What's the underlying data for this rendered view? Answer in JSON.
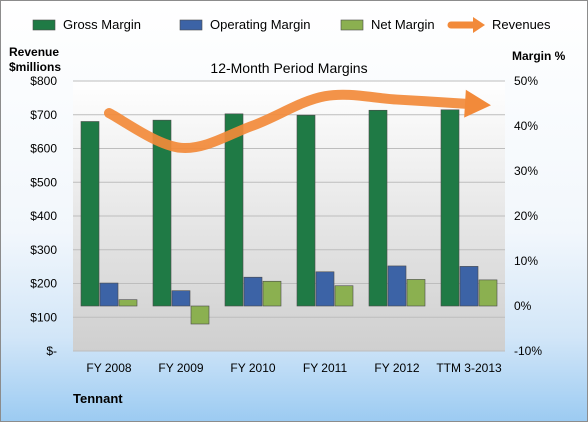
{
  "chart_data": {
    "type": "bar",
    "title": "12-Month Period Margins",
    "company": "Tennant",
    "left_axis_label_lines": [
      "Revenue",
      "$millions"
    ],
    "right_axis_label": "Margin %",
    "categories": [
      "FY 2008",
      "FY 2009",
      "FY 2010",
      "FY 2011",
      "FY 2012",
      "TTM 3-2013"
    ],
    "left_ticks": [
      "$-",
      "$100",
      "$200",
      "$300",
      "$400",
      "$500",
      "$600",
      "$700",
      "$800"
    ],
    "right_ticks": [
      "-10%",
      "0%",
      "10%",
      "20%",
      "30%",
      "40%",
      "50%"
    ],
    "ylim_left": [
      0,
      800
    ],
    "ylim_right": [
      -10,
      50
    ],
    "legend_position": "top",
    "series": [
      {
        "name": "Gross Margin",
        "axis": "right",
        "color": "#1f7a45",
        "values": [
          41.0,
          41.3,
          42.7,
          42.4,
          43.5,
          43.6
        ]
      },
      {
        "name": "Operating Margin",
        "axis": "right",
        "color": "#3c63a6",
        "values": [
          5.1,
          3.4,
          6.4,
          7.6,
          8.9,
          8.8
        ]
      },
      {
        "name": "Net Margin",
        "axis": "right",
        "color": "#8bb050",
        "values": [
          1.4,
          -4.0,
          5.5,
          4.5,
          5.9,
          5.8
        ]
      },
      {
        "name": "Revenues",
        "axis": "left",
        "type": "line",
        "color": "#f28a3a",
        "values": [
          705,
          602,
          668,
          755,
          745,
          732
        ]
      }
    ]
  }
}
